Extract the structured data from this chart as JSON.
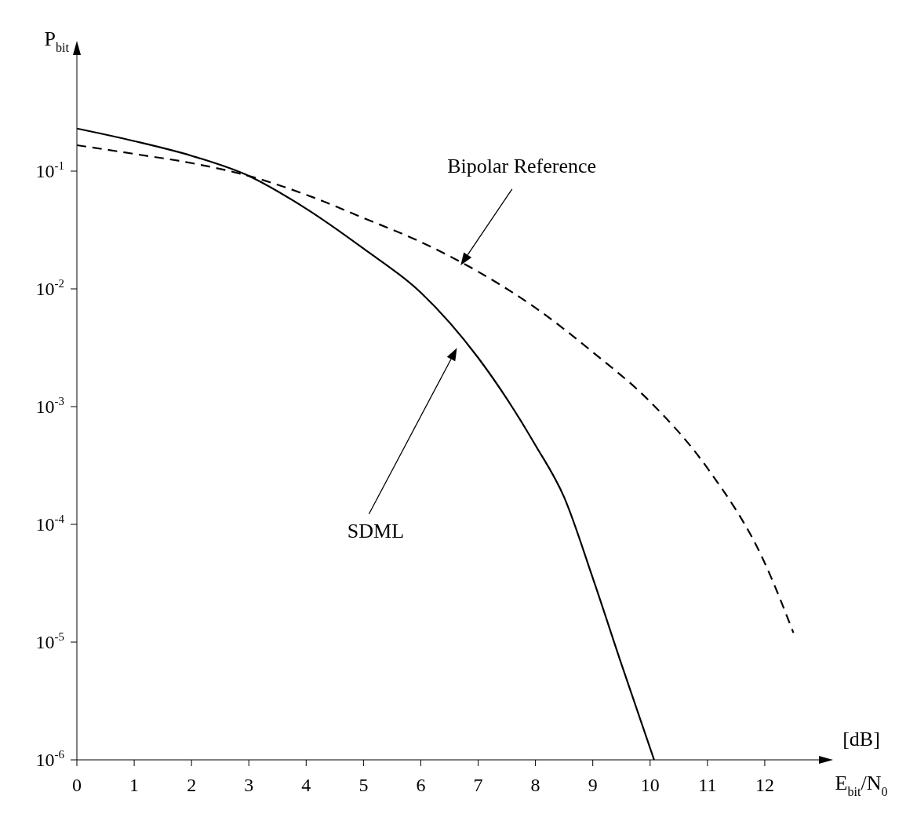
{
  "chart_data": {
    "type": "line",
    "xlabel": "E$_{bit}$/N$_{0}$",
    "ylabel": "P$_{bit}$",
    "log": "y",
    "grid": false,
    "legend": false,
    "marker": "none",
    "xlim": [
      0,
      13
    ],
    "xticks": [
      0,
      1,
      2,
      3,
      4,
      5,
      6,
      7,
      8,
      9,
      10,
      11,
      12
    ],
    "ylim": [
      1e-06,
      1
    ],
    "yticks": [
      {
        "value": 0.1,
        "label": "10$^{-1}$"
      },
      {
        "value": 0.01,
        "label": "10$^{-2}$"
      },
      {
        "value": 0.001,
        "label": "10$^{-3}$"
      },
      {
        "value": 0.0001,
        "label": "10$^{-4}$"
      },
      {
        "value": 1e-05,
        "label": "10$^{-5}$"
      },
      {
        "value": 1e-06,
        "label": "10$^{-6}$"
      }
    ],
    "series": [
      {
        "color": "#000000",
        "line_style": "solid",
        "x": [
          0,
          1,
          2,
          3,
          4,
          5,
          6,
          7,
          8,
          8.5,
          9,
          9.5,
          10.07
        ],
        "values": [
          0.23,
          0.18,
          0.135,
          0.091,
          0.048,
          0.022,
          0.0093,
          0.0026,
          0.00047,
          0.00017,
          3.5e-05,
          6.5e-06,
          1e-06
        ]
      },
      {
        "color": "#000000",
        "line_style": "dashed",
        "x": [
          0,
          1,
          2,
          3,
          4,
          5,
          6,
          7,
          8,
          9,
          10,
          11,
          12,
          12.5
        ],
        "values": [
          0.166,
          0.14,
          0.117,
          0.091,
          0.063,
          0.04,
          0.025,
          0.014,
          0.0069,
          0.0029,
          0.0011,
          0.0003,
          4.7e-05,
          1.2e-05
        ]
      }
    ],
    "annotations": [
      "Bipolar Reference",
      "SDML",
      "[dB]"
    ]
  }
}
